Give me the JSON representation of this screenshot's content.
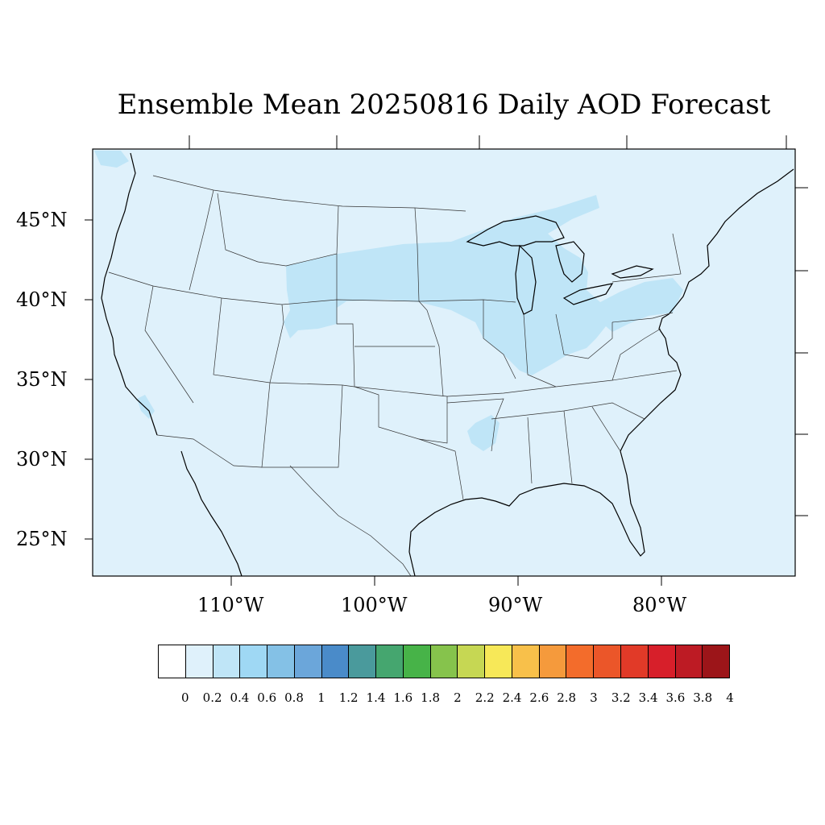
{
  "title": "Ensemble Mean 20250816 Daily AOD Forecast",
  "y_axis_labels": [
    "45°N",
    "40°N",
    "35°N",
    "30°N",
    "25°N"
  ],
  "x_axis_labels": [
    "110°W",
    "100°W",
    "90°W",
    "80°W"
  ],
  "colorbar": {
    "labels": [
      "0",
      "0.2",
      "0.4",
      "0.6",
      "0.8",
      "1",
      "1.2",
      "1.4",
      "1.6",
      "1.8",
      "2",
      "2.2",
      "2.4",
      "2.6",
      "2.8",
      "3",
      "3.2",
      "3.4",
      "3.6",
      "3.8",
      "4"
    ],
    "colors": [
      "#ffffff",
      "#dff1fb",
      "#bfe5f7",
      "#9fd8f4",
      "#84c1e6",
      "#6ba6da",
      "#4a8bc9",
      "#4a9a9c",
      "#45a66f",
      "#47b348",
      "#86c34c",
      "#c6d753",
      "#f7e858",
      "#f8c04a",
      "#f59a3c",
      "#f36c2b",
      "#eb5629",
      "#e13a28",
      "#d71f2a",
      "#bd1b24",
      "#9c1519"
    ]
  },
  "map": {
    "background_color": "#dff1fb",
    "elevated_aod_color": "#bfe5f7",
    "elevated_aod_regions": [
      "Northern Plains",
      "Upper Midwest",
      "Great Lakes",
      "Ohio Valley",
      "Pennsylvania",
      "Lower Mississippi Valley"
    ]
  }
}
